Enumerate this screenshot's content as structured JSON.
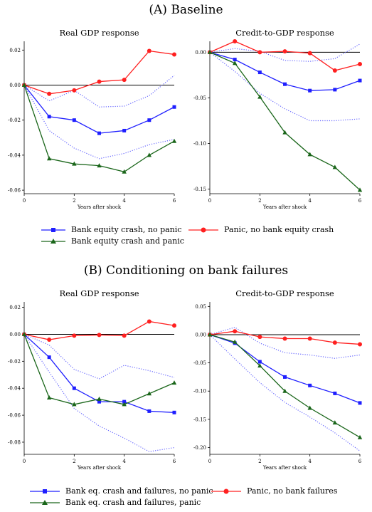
{
  "panels": {
    "a": {
      "title": "(A) Baseline"
    },
    "b": {
      "title": "(B) Conditioning on bank failures"
    }
  },
  "legend_a": {
    "equity": {
      "label": "Bank equity crash, no panic",
      "color": "#1f1fff"
    },
    "panic": {
      "label": "Panic, no bank equity crash",
      "color": "#ff2020"
    },
    "both": {
      "label": "Bank equity crash and panic",
      "color": "#1a661a"
    }
  },
  "legend_b": {
    "equity": {
      "label": "Bank eq. crash and failures, no panic",
      "color": "#1f1fff"
    },
    "panic": {
      "label": "Panic, no bank failures",
      "color": "#ff2020"
    },
    "both": {
      "label": "Bank eq. crash and failures, panic",
      "color": "#1a661a"
    }
  },
  "chart_data": [
    {
      "type": "line",
      "title": "Real GDP response",
      "xlabel": "Years after shock",
      "x": [
        0,
        1,
        2,
        3,
        4,
        5,
        6
      ],
      "xticks": [
        0,
        2,
        4,
        6
      ],
      "yticks": [
        0.02,
        0.0,
        -0.02,
        -0.04,
        -0.06
      ],
      "ytick_labels": [
        "0.02",
        "0.00",
        "-0.02",
        "-0.04",
        "-0.06"
      ],
      "ylim": [
        -0.062,
        0.025
      ],
      "series": [
        {
          "name": "Bank equity crash, no panic",
          "color": "#1f1fff",
          "marker": "square",
          "values": [
            0,
            -0.018,
            -0.02,
            -0.0275,
            -0.026,
            -0.02,
            -0.0125
          ]
        },
        {
          "name": "Panic, no bank equity crash",
          "color": "#ff2020",
          "marker": "circle",
          "values": [
            0,
            -0.005,
            -0.003,
            0.002,
            0.003,
            0.0195,
            0.0175
          ]
        },
        {
          "name": "Bank equity crash and panic",
          "color": "#1a661a",
          "marker": "triangle",
          "values": [
            0,
            -0.042,
            -0.045,
            -0.046,
            -0.0495,
            -0.04,
            -0.032
          ]
        }
      ],
      "bands": [
        {
          "upper": [
            0,
            -0.009,
            -0.003,
            -0.0125,
            -0.012,
            -0.006,
            0.0055
          ],
          "lower": [
            0,
            -0.026,
            -0.036,
            -0.042,
            -0.039,
            -0.034,
            -0.031
          ]
        }
      ]
    },
    {
      "type": "line",
      "title": "Credit-to-GDP response",
      "xlabel": "Years after shock",
      "x": [
        0,
        1,
        2,
        3,
        4,
        5,
        6
      ],
      "xticks": [
        0,
        2,
        4,
        6
      ],
      "yticks": [
        0.0,
        -0.05,
        -0.1,
        -0.15
      ],
      "ytick_labels": [
        "0.00",
        "-0.05",
        "-0.10",
        "-0.15"
      ],
      "ylim": [
        -0.155,
        0.012
      ],
      "series": [
        {
          "name": "Bank equity crash, no panic",
          "color": "#1f1fff",
          "marker": "square",
          "values": [
            0,
            -0.008,
            -0.022,
            -0.035,
            -0.042,
            -0.041,
            -0.031
          ]
        },
        {
          "name": "Panic, no bank equity crash",
          "color": "#ff2020",
          "marker": "circle",
          "values": [
            0,
            0.012,
            0.0,
            0.001,
            -0.001,
            -0.02,
            -0.013
          ]
        },
        {
          "name": "Bank equity crash and panic",
          "color": "#1a661a",
          "marker": "triangle",
          "values": [
            0,
            -0.012,
            -0.049,
            -0.088,
            -0.112,
            -0.126,
            -0.151
          ]
        }
      ],
      "bands": [
        {
          "upper": [
            0,
            0.004,
            0.001,
            -0.009,
            -0.01,
            -0.007,
            0.009
          ],
          "lower": [
            0,
            -0.021,
            -0.045,
            -0.062,
            -0.075,
            -0.075,
            -0.073
          ]
        }
      ]
    },
    {
      "type": "line",
      "title": "Real GDP response",
      "xlabel": "Years after shock",
      "x": [
        0,
        1,
        2,
        3,
        4,
        5,
        6
      ],
      "xticks": [
        0,
        2,
        4,
        6
      ],
      "yticks": [
        0.02,
        0.0,
        -0.02,
        -0.04,
        -0.06,
        -0.08
      ],
      "ytick_labels": [
        "0.02",
        "0.00",
        "-0.02",
        "-0.04",
        "-0.06",
        "-0.08"
      ],
      "ylim": [
        -0.089,
        0.024
      ],
      "series": [
        {
          "name": "Bank eq. crash and failures, no panic",
          "color": "#1f1fff",
          "marker": "square",
          "values": [
            0,
            -0.017,
            -0.04,
            -0.05,
            -0.05,
            -0.057,
            -0.058
          ]
        },
        {
          "name": "Panic, no bank failures",
          "color": "#ff2020",
          "marker": "circle",
          "values": [
            0,
            -0.004,
            -0.001,
            -0.0005,
            -0.001,
            0.0095,
            0.0065
          ]
        },
        {
          "name": "Bank eq. crash and failures, panic",
          "color": "#1a661a",
          "marker": "triangle",
          "values": [
            0,
            -0.047,
            -0.052,
            -0.048,
            -0.052,
            -0.044,
            -0.036
          ]
        }
      ],
      "bands": [
        {
          "upper": [
            0,
            -0.008,
            -0.026,
            -0.033,
            -0.023,
            -0.027,
            -0.032
          ],
          "lower": [
            0,
            -0.028,
            -0.055,
            -0.068,
            -0.077,
            -0.087,
            -0.084
          ]
        }
      ]
    },
    {
      "type": "line",
      "title": "Credit-to-GDP response",
      "xlabel": "Years after shock",
      "x": [
        0,
        1,
        2,
        3,
        4,
        5,
        6
      ],
      "xticks": [
        0,
        2,
        4,
        6
      ],
      "yticks": [
        0.05,
        0.0,
        -0.05,
        -0.1,
        -0.15,
        -0.2
      ],
      "ytick_labels": [
        "0.05",
        "0.00",
        "-0.05",
        "-0.10",
        "-0.15",
        "-0.20"
      ],
      "ylim": [
        -0.212,
        0.058
      ],
      "series": [
        {
          "name": "Bank eq. crash and failures, no panic",
          "color": "#1f1fff",
          "marker": "square",
          "values": [
            0,
            -0.015,
            -0.048,
            -0.075,
            -0.09,
            -0.104,
            -0.121
          ]
        },
        {
          "name": "Panic, no bank failures",
          "color": "#ff2020",
          "marker": "circle",
          "values": [
            0,
            0.006,
            -0.004,
            -0.007,
            -0.007,
            -0.014,
            -0.017
          ]
        },
        {
          "name": "Bank eq. crash and failures, panic",
          "color": "#1a661a",
          "marker": "triangle",
          "values": [
            0,
            -0.013,
            -0.055,
            -0.1,
            -0.13,
            -0.156,
            -0.182
          ]
        }
      ],
      "bands": [
        {
          "upper": [
            0,
            0.013,
            -0.015,
            -0.032,
            -0.036,
            -0.042,
            -0.036
          ],
          "lower": [
            0,
            -0.043,
            -0.085,
            -0.12,
            -0.146,
            -0.174,
            -0.206
          ]
        }
      ]
    }
  ]
}
